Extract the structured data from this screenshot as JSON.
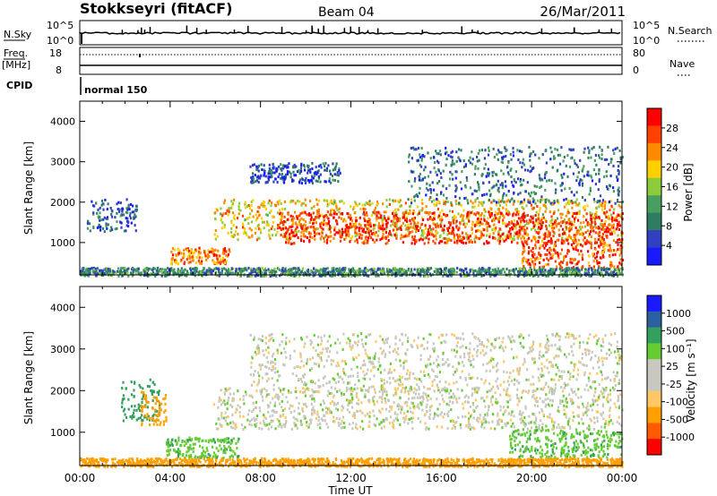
{
  "header": {
    "station": "Stokkseyri (fitACF)",
    "beam": "Beam 04",
    "date": "26/Mar/2011"
  },
  "top_panels": {
    "nsky": {
      "label": "N.Sky",
      "ticks": [
        "10^5",
        "10^0"
      ]
    },
    "nsearch": {
      "label": "N.Search",
      "ticks": [
        "10^5",
        "10^0"
      ]
    },
    "freq": {
      "label": "Freq.",
      "unit": "[MHz]",
      "ticks": [
        "18",
        "8"
      ]
    },
    "nave": {
      "label": "Nave",
      "ticks": [
        "80",
        "0"
      ]
    },
    "cpid": {
      "label": "CPID",
      "value": "normal 150"
    }
  },
  "power_colorbar": {
    "label": "Power [dB]",
    "ticks": [
      "28",
      "24",
      "20",
      "16",
      "12",
      "8",
      "4"
    ]
  },
  "velocity_colorbar": {
    "label": "Velocity [m s⁻¹]",
    "ticks": [
      "1000",
      "500",
      "100",
      "25",
      "-25",
      "-100",
      "-500",
      "-1000"
    ]
  },
  "x_axis": {
    "label": "Time UT",
    "ticks": [
      "00:00",
      "04:00",
      "08:00",
      "12:00",
      "16:00",
      "20:00",
      "00:00"
    ]
  },
  "colors": {
    "power_scale": [
      "#1a1aff",
      "#3040c0",
      "#2e7d62",
      "#48a060",
      "#8ccc3c",
      "#ffd000",
      "#ff8a00",
      "#ff4000",
      "#ff0000"
    ],
    "velocity_scale": [
      "#ff0000",
      "#ff5a00",
      "#ffa000",
      "#ffc864",
      "#c8c8c0",
      "#c8c8c0",
      "#66cc33",
      "#33a060",
      "#2a60a0",
      "#1a1aff"
    ],
    "ground_scatter": "#c8c8c0"
  },
  "chart_data": [
    {
      "type": "heatmap",
      "title": "Power",
      "xlabel": "",
      "ylabel": "Slant Range [km]",
      "x_unit": "hours UT",
      "xlim": [
        0,
        24
      ],
      "ylim": [
        200,
        4500
      ],
      "yticks": [
        1000,
        2000,
        3000,
        4000
      ],
      "colorbar_range_dB": [
        0,
        32
      ],
      "features": [
        {
          "t_start": 0.3,
          "t_end": 2.5,
          "range_from": 1300,
          "range_to": 2100,
          "power_dB": 6
        },
        {
          "t_start": 4.0,
          "t_end": 6.6,
          "range_from": 500,
          "range_to": 900,
          "power_dB": 24
        },
        {
          "t_start": 5.9,
          "t_end": 24.0,
          "range_from": 1100,
          "range_to": 2100,
          "power_dB": 20
        },
        {
          "t_start": 8.8,
          "t_end": 24.0,
          "range_from": 1000,
          "range_to": 1800,
          "power_dB": 28
        },
        {
          "t_start": 7.5,
          "t_end": 11.5,
          "range_from": 2500,
          "range_to": 3000,
          "power_dB": 6
        },
        {
          "t_start": 14.5,
          "t_end": 24.0,
          "range_from": 2000,
          "range_to": 3400,
          "power_dB": 8
        },
        {
          "t_start": 19.5,
          "t_end": 24.0,
          "range_from": 400,
          "range_to": 1100,
          "power_dB": 26
        },
        {
          "t_start": 0.0,
          "t_end": 24.0,
          "range_from": 200,
          "range_to": 400,
          "power_dB": 10
        }
      ]
    },
    {
      "type": "heatmap",
      "title": "Velocity",
      "xlabel": "Time UT",
      "ylabel": "Slant Range [km]",
      "x_unit": "hours UT",
      "xlim": [
        0,
        24
      ],
      "ylim": [
        200,
        4500
      ],
      "yticks": [
        1000,
        2000,
        3000,
        4000
      ],
      "colorbar_range_ms": [
        -1000,
        1000
      ],
      "features": [
        {
          "t_start": 1.8,
          "t_end": 3.5,
          "range_from": 1300,
          "range_to": 2300,
          "velocity_ms": 300
        },
        {
          "t_start": 2.6,
          "t_end": 3.8,
          "range_from": 1200,
          "range_to": 2000,
          "velocity_ms": -300
        },
        {
          "t_start": 3.8,
          "t_end": 7.0,
          "range_from": 400,
          "range_to": 900,
          "velocity_ms": 80
        },
        {
          "t_start": 5.9,
          "t_end": 24.0,
          "range_from": 1100,
          "range_to": 2100,
          "velocity_ms": 0
        },
        {
          "t_start": 7.5,
          "t_end": 24.0,
          "range_from": 2000,
          "range_to": 3400,
          "velocity_ms": 0
        },
        {
          "t_start": 19.0,
          "t_end": 24.0,
          "range_from": 400,
          "range_to": 1100,
          "velocity_ms": 80
        },
        {
          "t_start": 0.0,
          "t_end": 24.0,
          "range_from": 200,
          "range_to": 400,
          "velocity_ms": -150
        }
      ]
    }
  ]
}
